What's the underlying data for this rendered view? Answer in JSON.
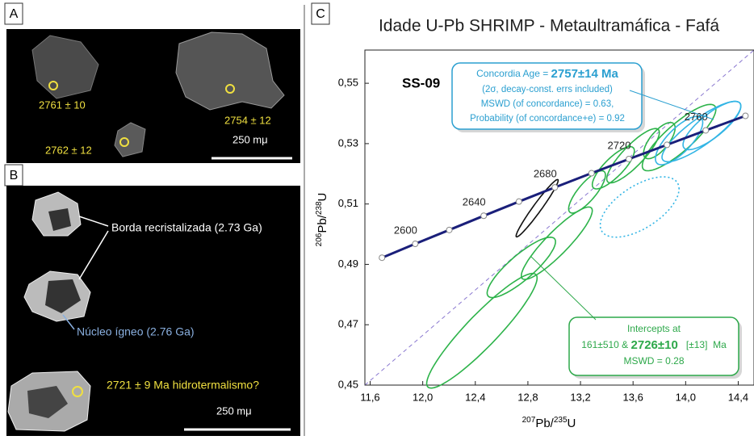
{
  "panel_a": {
    "label": "A",
    "ages": [
      "2761 ± 10",
      "2762 ± 12",
      "2754 ± 12"
    ],
    "scale": "250 mμ"
  },
  "panel_b": {
    "label": "B",
    "rim": "Borda recristalizada (2.73 Ga)",
    "core": "Núcleo ígneo (2.76 Ga)",
    "hydro": "2721 ± 9 Ma hidrotermalismo?",
    "scale": "250 mμ"
  },
  "chart_data": {
    "type": "concordia",
    "panel_label": "C",
    "title": "Idade U-Pb SHRIMP - Metaultramáfica - Fafá",
    "sample": "SS-09",
    "xlabel": {
      "mass": "207",
      "element": "Pb/",
      "mass2": "235",
      "element2": "U"
    },
    "ylabel": {
      "mass": "206",
      "element": "Pb/",
      "mass2": "238",
      "element2": "U"
    },
    "xlim": [
      11.56,
      14.52
    ],
    "ylim": [
      0.45,
      0.561
    ],
    "xticks": [
      {
        "value": 11.6,
        "label": "11,6"
      },
      {
        "value": 12.0,
        "label": "12,0"
      },
      {
        "value": 12.4,
        "label": "12,4"
      },
      {
        "value": 12.8,
        "label": "12,8"
      },
      {
        "value": 13.2,
        "label": "13,2"
      },
      {
        "value": 13.6,
        "label": "13,6"
      },
      {
        "value": 14.0,
        "label": "14,0"
      },
      {
        "value": 14.4,
        "label": "14,4"
      }
    ],
    "yticks": [
      {
        "value": 0.45,
        "label": "0,45"
      },
      {
        "value": 0.47,
        "label": "0,47"
      },
      {
        "value": 0.49,
        "label": "0,49"
      },
      {
        "value": 0.51,
        "label": "0,51"
      },
      {
        "value": 0.53,
        "label": "0,53"
      },
      {
        "value": 0.55,
        "label": "0,55"
      }
    ],
    "concordia": {
      "color": "#1a1f7a",
      "age_labels": [
        null,
        2600,
        null,
        2640,
        null,
        2680,
        null,
        2720,
        null,
        2760,
        null
      ],
      "x": [
        11.69,
        11.943,
        12.202,
        12.464,
        12.732,
        13.005,
        13.284,
        13.568,
        13.858,
        14.153,
        14.455
      ],
      "y": [
        0.4922,
        0.4968,
        0.5014,
        0.5061,
        0.5108,
        0.5155,
        0.5202,
        0.5249,
        0.5296,
        0.5344,
        0.5392
      ]
    },
    "ellipses": [
      {
        "x": 12.87,
        "y": 0.5086,
        "sx": 0.16,
        "sy": 0.0095,
        "rho": 0.97,
        "color": "#111111"
      },
      {
        "x": 12.45,
        "y": 0.468,
        "sx": 0.42,
        "sy": 0.019,
        "rho": 0.92,
        "color": "#2db34a"
      },
      {
        "x": 12.75,
        "y": 0.489,
        "sx": 0.26,
        "sy": 0.01,
        "rho": 0.85,
        "color": "#2db34a"
      },
      {
        "x": 13.02,
        "y": 0.497,
        "sx": 0.27,
        "sy": 0.012,
        "rho": 0.9,
        "color": "#2db34a"
      },
      {
        "x": 13.25,
        "y": 0.514,
        "sx": 0.14,
        "sy": 0.007,
        "rho": 0.8,
        "color": "#2db34a"
      },
      {
        "x": 13.45,
        "y": 0.522,
        "sx": 0.16,
        "sy": 0.007,
        "rho": 0.8,
        "color": "#2db34a"
      },
      {
        "x": 13.6,
        "y": 0.526,
        "sx": 0.2,
        "sy": 0.009,
        "rho": 0.85,
        "color": "#2db34a"
      },
      {
        "x": 13.95,
        "y": 0.532,
        "sx": 0.28,
        "sy": 0.011,
        "rho": 0.85,
        "color": "#2db34a"
      },
      {
        "x": 13.8,
        "y": 0.531,
        "sx": 0.12,
        "sy": 0.006,
        "rho": 0.7,
        "color": "#2db34a"
      },
      {
        "x": 14.12,
        "y": 0.534,
        "sx": 0.3,
        "sy": 0.01,
        "rho": 0.85,
        "color": "#33b5e5"
      },
      {
        "x": 14.2,
        "y": 0.536,
        "sx": 0.22,
        "sy": 0.008,
        "rho": 0.8,
        "color": "#33b5e5"
      },
      {
        "x": 13.95,
        "y": 0.531,
        "sx": 0.18,
        "sy": 0.008,
        "rho": 0.75,
        "color": "#33b5e5"
      },
      {
        "x": 13.65,
        "y": 0.509,
        "sx": 0.3,
        "sy": 0.01,
        "rho": 0.6,
        "color": "#33b5e5",
        "line_style": "dotted"
      }
    ],
    "concordia_box": {
      "age_text": "Concordia Age = ",
      "age": "2757±14 Ma",
      "line2": "(2σ, decay-const. errs included)",
      "line3": "MSWD (of concordance) = 0.63,",
      "line4": "Probability  (of concordance+e) = 0.92",
      "color": "#2a9fd0"
    },
    "intercept_box": {
      "line1": "Intercepts at",
      "lower": "161±510 & ",
      "upper": "2726±10",
      "error": "   [±13]  Ma",
      "line3": "MSWD = 0.28",
      "color": "#2da84a"
    }
  }
}
